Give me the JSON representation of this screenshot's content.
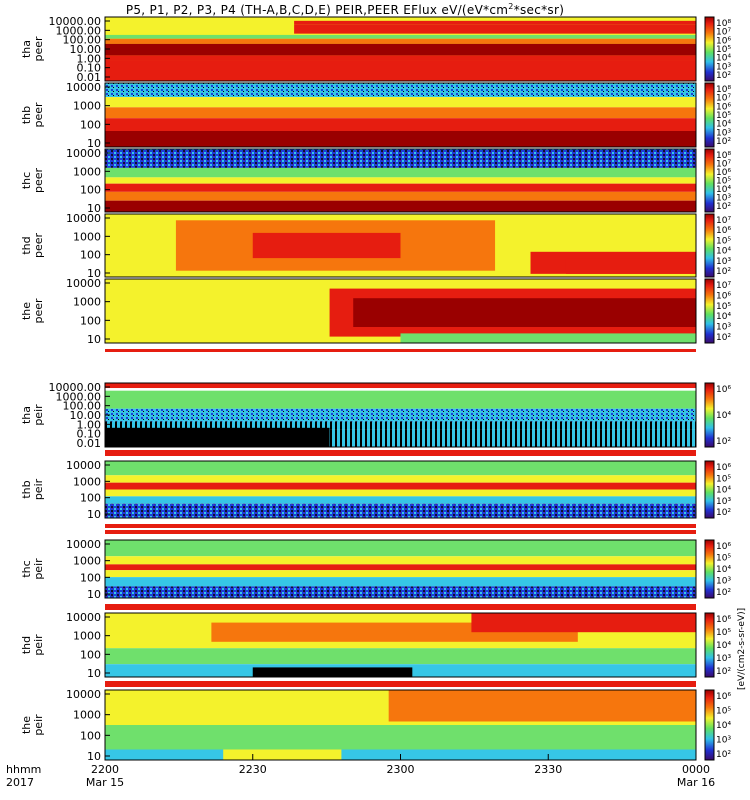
{
  "title_main": "P5, P1, P2, P3, P4 (TH-A,B,C,D,E) PEIR,PEER EFlux eV/(eV*cm",
  "title_sup": "2",
  "title_tail": "*sec*sr)",
  "x_axis": {
    "row1_label": "hhmm",
    "row2_label": "2017",
    "ticks": [
      {
        "t": 0,
        "label": "2200",
        "sub": "Mar 15"
      },
      {
        "t": 30,
        "label": "2230",
        "sub": ""
      },
      {
        "t": 60,
        "label": "2300",
        "sub": ""
      },
      {
        "t": 90,
        "label": "2330",
        "sub": ""
      },
      {
        "t": 120,
        "label": "0000",
        "sub": "Mar 16"
      }
    ]
  },
  "colorbar_unit": "[eV/(cm2-s-sr-eV)]",
  "colors": {
    "darkred": "#9a0000",
    "red": "#e61d10",
    "orange": "#f6760d",
    "yellow": "#f4f22c",
    "green": "#6fe06c",
    "cyan": "#36c6e6",
    "blue": "#1c40d6",
    "purple": "#5b12a8"
  },
  "chart_data": [
    {
      "type": "heatmap",
      "probe": "tha",
      "species": "peer",
      "label_line1": "tha",
      "label_line2": "peer",
      "yscale": "log",
      "yticks": [
        "10000.00",
        "1000.00",
        "100.00",
        "10.00",
        "1.00",
        "0.10",
        "0.01"
      ],
      "colorbar_ticks": [
        "10⁸",
        "10⁷",
        "10⁶",
        "10⁵",
        "10⁴",
        "10³",
        "10²"
      ]
    },
    {
      "type": "heatmap",
      "probe": "thb",
      "species": "peer",
      "label_line1": "thb",
      "label_line2": "peer",
      "yscale": "log",
      "yticks": [
        "10000",
        "1000",
        "100",
        "10"
      ],
      "colorbar_ticks": [
        "10⁸",
        "10⁷",
        "10⁶",
        "10⁵",
        "10⁴",
        "10³",
        "10²"
      ]
    },
    {
      "type": "heatmap",
      "probe": "thc",
      "species": "peer",
      "label_line1": "thc",
      "label_line2": "peer",
      "yscale": "log",
      "yticks": [
        "10000",
        "1000",
        "100",
        "10"
      ],
      "colorbar_ticks": [
        "10⁸",
        "10⁷",
        "10⁶",
        "10⁵",
        "10⁴",
        "10³",
        "10²"
      ]
    },
    {
      "type": "heatmap",
      "probe": "thd",
      "species": "peer",
      "label_line1": "thd",
      "label_line2": "peer",
      "yscale": "log",
      "yticks": [
        "10000",
        "1000",
        "100",
        "10"
      ],
      "colorbar_ticks": [
        "10⁷",
        "10⁶",
        "10⁵",
        "10⁴",
        "10³",
        "10²"
      ]
    },
    {
      "type": "heatmap",
      "probe": "the",
      "species": "peer",
      "label_line1": "the",
      "label_line2": "peer",
      "yscale": "log",
      "yticks": [
        "10000",
        "1000",
        "100",
        "10"
      ],
      "colorbar_ticks": [
        "10⁷",
        "10⁶",
        "10⁵",
        "10⁴",
        "10³",
        "10²"
      ]
    },
    {
      "type": "heatmap",
      "probe": "tha",
      "species": "peir",
      "label_line1": "tha",
      "label_line2": "peir",
      "yscale": "log",
      "yticks": [
        "10000.00",
        "1000.00",
        "100.00",
        "10.00",
        "1.00",
        "0.10",
        "0.01"
      ],
      "colorbar_ticks": [
        "10⁶",
        "10⁴",
        "10²"
      ]
    },
    {
      "type": "heatmap",
      "probe": "thb",
      "species": "peir",
      "label_line1": "thb",
      "label_line2": "peir",
      "yscale": "log",
      "yticks": [
        "10000",
        "1000",
        "100",
        "10"
      ],
      "colorbar_ticks": [
        "10⁶",
        "10⁵",
        "10⁴",
        "10³",
        "10²"
      ]
    },
    {
      "type": "heatmap",
      "probe": "thc",
      "species": "peir",
      "label_line1": "thc",
      "label_line2": "peir",
      "yscale": "log",
      "yticks": [
        "10000",
        "1000",
        "100",
        "10"
      ],
      "colorbar_ticks": [
        "10⁶",
        "10⁵",
        "10⁴",
        "10³",
        "10²"
      ]
    },
    {
      "type": "heatmap",
      "probe": "thd",
      "species": "peir",
      "label_line1": "thd",
      "label_line2": "peir",
      "yscale": "log",
      "yticks": [
        "10000",
        "1000",
        "100",
        "10"
      ],
      "colorbar_ticks": [
        "10⁶",
        "10⁵",
        "10⁴",
        "10³",
        "10²"
      ]
    },
    {
      "type": "heatmap",
      "probe": "the",
      "species": "peir",
      "label_line1": "the",
      "label_line2": "peir",
      "yscale": "log",
      "yticks": [
        "10000",
        "1000",
        "100",
        "10"
      ],
      "colorbar_ticks": [
        "10⁶",
        "10⁵",
        "10⁴",
        "10³",
        "10²"
      ]
    }
  ]
}
